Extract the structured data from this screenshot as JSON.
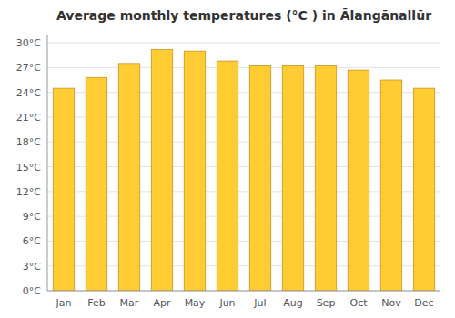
{
  "chart_data": {
    "type": "bar",
    "title": "Average monthly temperatures (°C ) in Ālangānallūr",
    "categories": [
      "Jan",
      "Feb",
      "Mar",
      "Apr",
      "May",
      "Jun",
      "Jul",
      "Aug",
      "Sep",
      "Oct",
      "Nov",
      "Dec"
    ],
    "values": [
      24.5,
      25.8,
      27.5,
      29.2,
      29.0,
      27.8,
      27.2,
      27.2,
      27.2,
      26.7,
      25.5,
      24.5
    ],
    "color": "#FFCC33",
    "ylim": [
      0,
      31
    ],
    "yticks": [
      {
        "value": 0,
        "label": "0°C"
      },
      {
        "value": 3,
        "label": "3°C"
      },
      {
        "value": 6,
        "label": "6°C"
      },
      {
        "value": 9,
        "label": "9°C"
      },
      {
        "value": 12,
        "label": "12°C"
      },
      {
        "value": 15,
        "label": "15°C"
      },
      {
        "value": 18,
        "label": "18°C"
      },
      {
        "value": 21,
        "label": "21°C"
      },
      {
        "value": 24,
        "label": "24°C"
      },
      {
        "value": 27,
        "label": "27°C"
      },
      {
        "value": 30,
        "label": "30°C"
      }
    ],
    "grid": true
  }
}
